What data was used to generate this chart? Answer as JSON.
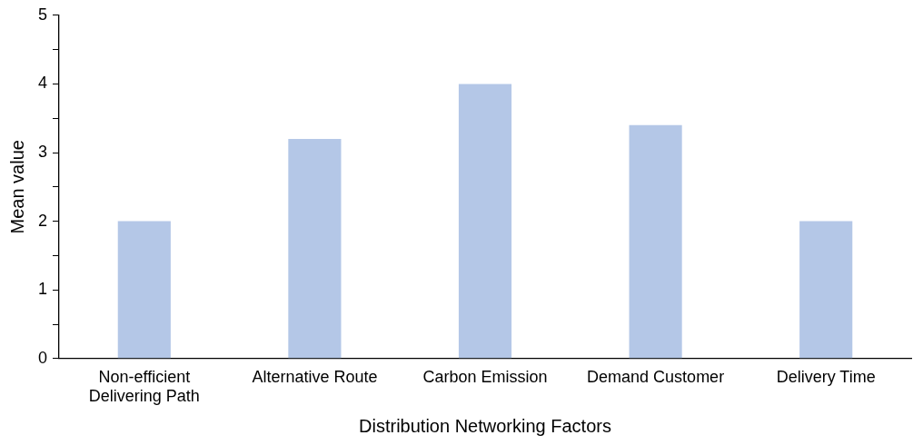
{
  "chart_data": {
    "type": "bar",
    "xlabel": "Distribution Networking Factors",
    "ylabel": "Mean value",
    "categories": [
      "Non-efficient Delivering Path",
      "Alternative Route",
      "Carbon Emission",
      "Demand Customer",
      "Delivery Time"
    ],
    "values": [
      2,
      3.2,
      4,
      3.4,
      2
    ],
    "color": "#b4c7e7",
    "ylim": [
      0,
      5
    ],
    "yticks": [
      0,
      {
        "value": 0.5,
        "label": null
      },
      1,
      {
        "value": 1.5,
        "label": null
      },
      2,
      {
        "value": 2.5,
        "label": null
      },
      3,
      {
        "value": 3.5,
        "label": null
      },
      4,
      {
        "value": 4.5,
        "label": null
      },
      5
    ],
    "grid": false,
    "legend": false
  }
}
